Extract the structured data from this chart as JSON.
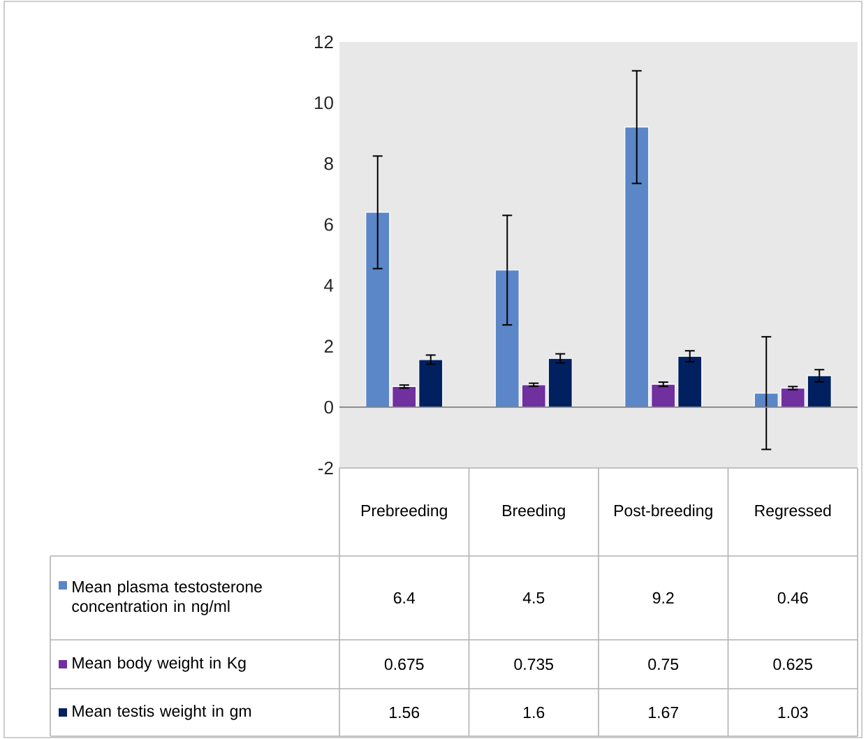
{
  "chart_data": {
    "type": "bar",
    "categories": [
      "Prebreeding",
      "Breeding",
      "Post-breeding",
      "Regressed"
    ],
    "series": [
      {
        "name": "Mean plasma testosterone concentration in ng/ml",
        "color": "#5b86c8",
        "values": [
          6.4,
          4.5,
          9.2,
          0.46
        ],
        "errors": [
          1.85,
          1.8,
          1.85,
          1.85
        ]
      },
      {
        "name": "Mean body weight in Kg",
        "color": "#7030a0",
        "values": [
          0.675,
          0.735,
          0.75,
          0.625
        ],
        "errors": [
          0.05,
          0.05,
          0.07,
          0.05
        ]
      },
      {
        "name": "Mean testis weight in gm",
        "color": "#002060",
        "values": [
          1.56,
          1.6,
          1.67,
          1.03
        ],
        "errors": [
          0.15,
          0.15,
          0.18,
          0.2
        ]
      }
    ],
    "ylim": [
      -2,
      12
    ],
    "yticks": [
      -2,
      0,
      2,
      4,
      6,
      8,
      10,
      12
    ],
    "data_labels": true,
    "legend": "bottom"
  }
}
